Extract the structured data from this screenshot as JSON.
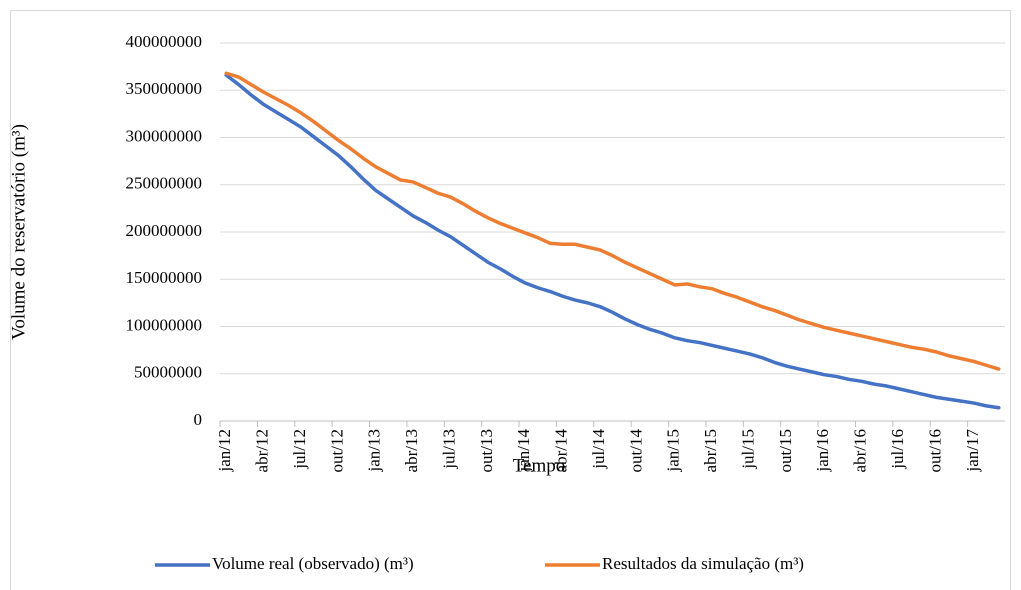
{
  "chart_data": {
    "type": "line",
    "categories": [
      "jan/12",
      null,
      null,
      "abr/12",
      null,
      null,
      "jul/12",
      null,
      null,
      "out/12",
      null,
      null,
      "jan/13",
      null,
      null,
      "abr/13",
      null,
      null,
      "jul/13",
      null,
      null,
      "out/13",
      null,
      null,
      "jan/14",
      null,
      null,
      "abr/14",
      null,
      null,
      "jul/14",
      null,
      null,
      "out/14",
      null,
      null,
      "jan/15",
      null,
      null,
      "abr/15",
      null,
      null,
      "jul/15",
      null,
      null,
      "out/15",
      null,
      null,
      "jan/16",
      null,
      null,
      "abr/16",
      null,
      null,
      "jul/16",
      null,
      null,
      "out/16",
      null,
      null,
      "jan/17",
      null,
      null
    ],
    "series": [
      {
        "name": "Volume real (observado) (m³)",
        "color": "#4472c4",
        "values": [
          366000000,
          356000000,
          345000000,
          335000000,
          327000000,
          319000000,
          311000000,
          301000000,
          291000000,
          281000000,
          269000000,
          256000000,
          244000000,
          235000000,
          226000000,
          217000000,
          210000000,
          202000000,
          195000000,
          186000000,
          177000000,
          168000000,
          161000000,
          153000000,
          146000000,
          141000000,
          137000000,
          132000000,
          128000000,
          125000000,
          121000000,
          115000000,
          108000000,
          102000000,
          97000000,
          93000000,
          88000000,
          85000000,
          83000000,
          80000000,
          77000000,
          74000000,
          71000000,
          67000000,
          62000000,
          58000000,
          55000000,
          52000000,
          49000000,
          47000000,
          44000000,
          42000000,
          39000000,
          37000000,
          34000000,
          31000000,
          28000000,
          25000000,
          23000000,
          21000000,
          19000000,
          16000000,
          14000000
        ]
      },
      {
        "name": "Resultados da simulação (m³)",
        "color": "#ed7d31",
        "values": [
          368000000,
          364000000,
          356000000,
          348000000,
          341000000,
          334000000,
          326000000,
          317000000,
          307000000,
          297000000,
          288000000,
          278000000,
          269000000,
          262000000,
          255000000,
          253000000,
          247000000,
          241000000,
          237000000,
          230000000,
          222000000,
          215000000,
          209000000,
          204000000,
          199000000,
          194000000,
          188000000,
          187000000,
          187000000,
          184000000,
          181000000,
          175000000,
          168000000,
          162000000,
          156000000,
          150000000,
          144000000,
          145000000,
          142000000,
          140000000,
          135000000,
          131000000,
          126000000,
          121000000,
          117000000,
          112000000,
          107000000,
          103000000,
          99000000,
          96000000,
          93000000,
          90000000,
          87000000,
          84000000,
          81000000,
          78000000,
          76000000,
          73000000,
          69000000,
          66000000,
          63000000,
          59000000,
          55000000
        ]
      }
    ],
    "xlabel": "Tempo",
    "ylabel": "Volume do reservatório (m³)",
    "ylim": [
      0,
      400000000
    ],
    "yticks": [
      0,
      50000000,
      100000000,
      150000000,
      200000000,
      250000000,
      300000000,
      350000000,
      400000000
    ],
    "grid": true,
    "legend": "bottom"
  }
}
